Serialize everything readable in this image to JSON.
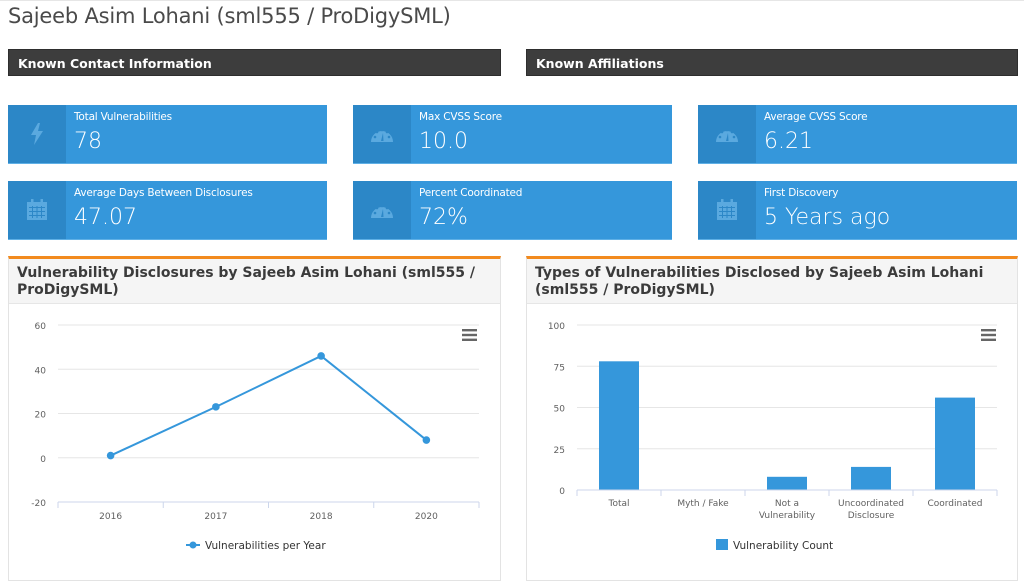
{
  "page": {
    "title": "Sajeeb Asim Lohani (sml555 / ProDigySML)"
  },
  "sections": {
    "contact": "Known Contact Information",
    "affiliations": "Known Affiliations"
  },
  "stats": [
    {
      "label": "Total Vulnerabilities",
      "value": "78",
      "icon": "bolt-icon"
    },
    {
      "label": "Max CVSS Score",
      "value": "10.0",
      "icon": "dashboard-gauge-icon"
    },
    {
      "label": "Average CVSS Score",
      "value": "6.21",
      "icon": "dashboard-gauge-icon"
    },
    {
      "label": "Average Days Between Disclosures",
      "value": "47.07",
      "icon": "calendar-icon"
    },
    {
      "label": "Percent Coordinated",
      "value": "72%",
      "icon": "dashboard-gauge-icon"
    },
    {
      "label": "First Discovery",
      "value": "5 Years ago",
      "icon": "calendar-icon"
    }
  ],
  "colors": {
    "stat_card": "#3597db",
    "stat_icon_bg": "#2c87c7",
    "section_bar": "#3d3d3d",
    "panel_accent": "#f28a1e",
    "series": "#3597db"
  },
  "chart_data": [
    {
      "type": "line",
      "title": "Vulnerability Disclosures by Sajeeb Asim Lohani (sml555 / ProDigySML)",
      "categories": [
        "2016",
        "2017",
        "2018",
        "2020"
      ],
      "series": [
        {
          "name": "Vulnerabilities per Year",
          "values": [
            1,
            23,
            46,
            8
          ]
        }
      ],
      "xlabel": "",
      "ylabel": "",
      "ylim": [
        -20,
        60
      ],
      "yticks": [
        -20,
        0,
        20,
        40,
        60
      ],
      "grid": true,
      "legend": "bottom-center"
    },
    {
      "type": "bar",
      "title": "Types of Vulnerabilities Disclosed by Sajeeb Asim Lohani (sml555 / ProDigySML)",
      "categories": [
        "Total",
        "Myth / Fake",
        "Not a Vulnerability",
        "Uncoordinated Disclosure",
        "Coordinated"
      ],
      "category_lines": [
        [
          "Total"
        ],
        [
          "Myth / Fake"
        ],
        [
          "Not a",
          "Vulnerability"
        ],
        [
          "Uncoordinated",
          "Disclosure"
        ],
        [
          "Coordinated"
        ]
      ],
      "series": [
        {
          "name": "Vulnerability Count",
          "values": [
            78,
            0,
            8,
            14,
            56
          ]
        }
      ],
      "xlabel": "",
      "ylabel": "",
      "ylim": [
        0,
        100
      ],
      "yticks": [
        0,
        25,
        50,
        75,
        100
      ],
      "grid": true,
      "legend": "bottom-center"
    }
  ]
}
